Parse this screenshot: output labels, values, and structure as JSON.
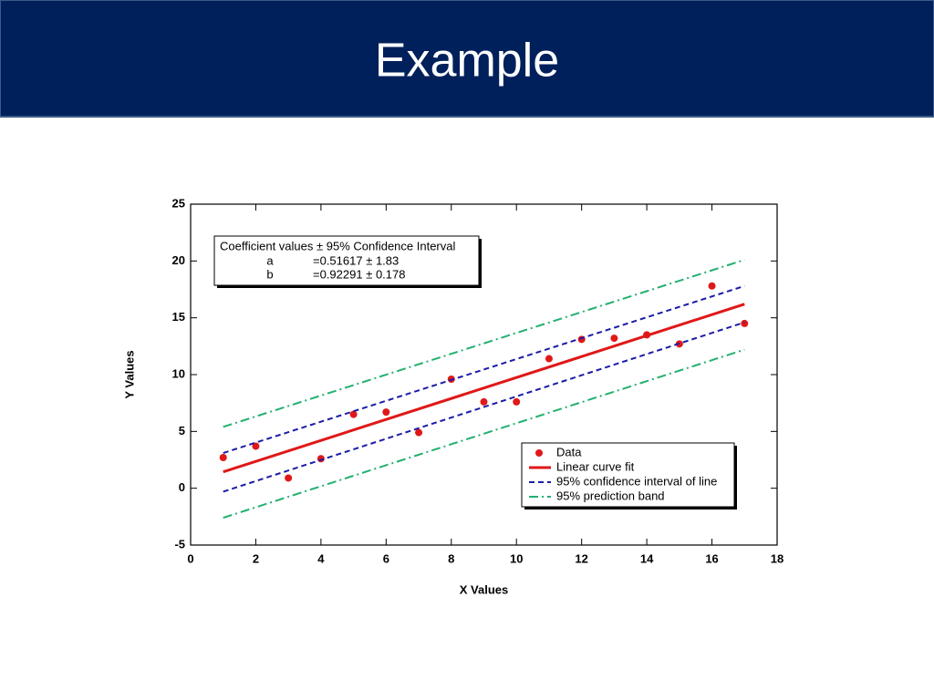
{
  "header": {
    "title": "Example"
  },
  "chart_data": {
    "type": "scatter",
    "x_label": "X Values",
    "y_label": "Y Values",
    "xlim": [
      0,
      18
    ],
    "xticks": [
      0,
      2,
      4,
      6,
      8,
      10,
      12,
      14,
      16,
      18
    ],
    "ylim": [
      -5,
      25
    ],
    "yticks": [
      -5,
      0,
      5,
      10,
      15,
      20,
      25
    ],
    "annotation": {
      "title": "Coefficient values ± 95% Confidence Interval",
      "rows": [
        [
          "a",
          "=0.51617 ± 1.83"
        ],
        [
          "b",
          "=0.92291 ± 0.178"
        ]
      ]
    },
    "legend": "lower right",
    "series": [
      {
        "name": "Data",
        "color": "#e01818",
        "kind": "points",
        "x": [
          1,
          2,
          3,
          4,
          5,
          6,
          7,
          8,
          9,
          10,
          11,
          12,
          13,
          14,
          15,
          16,
          17
        ],
        "values": [
          2.7,
          3.7,
          0.9,
          2.6,
          6.5,
          6.7,
          4.9,
          9.6,
          7.6,
          7.6,
          11.4,
          13.1,
          13.2,
          13.5,
          12.7,
          17.8,
          14.5
        ]
      },
      {
        "name": "Linear curve fit",
        "color": "#e01818",
        "kind": "solid",
        "x": [
          1,
          17
        ],
        "values": [
          1.44,
          16.2
        ]
      },
      {
        "name": "95% confidence interval of line",
        "color": "#1c1ca8",
        "kind": "dashed",
        "x": [
          1,
          17
        ],
        "upper": [
          3.1,
          17.8
        ],
        "lower": [
          -0.3,
          14.6
        ]
      },
      {
        "name": "95% prediction band",
        "color": "#22b070",
        "kind": "dashdot",
        "x": [
          1,
          17
        ],
        "upper": [
          5.4,
          20.1
        ],
        "lower": [
          -2.6,
          12.2
        ]
      }
    ]
  }
}
